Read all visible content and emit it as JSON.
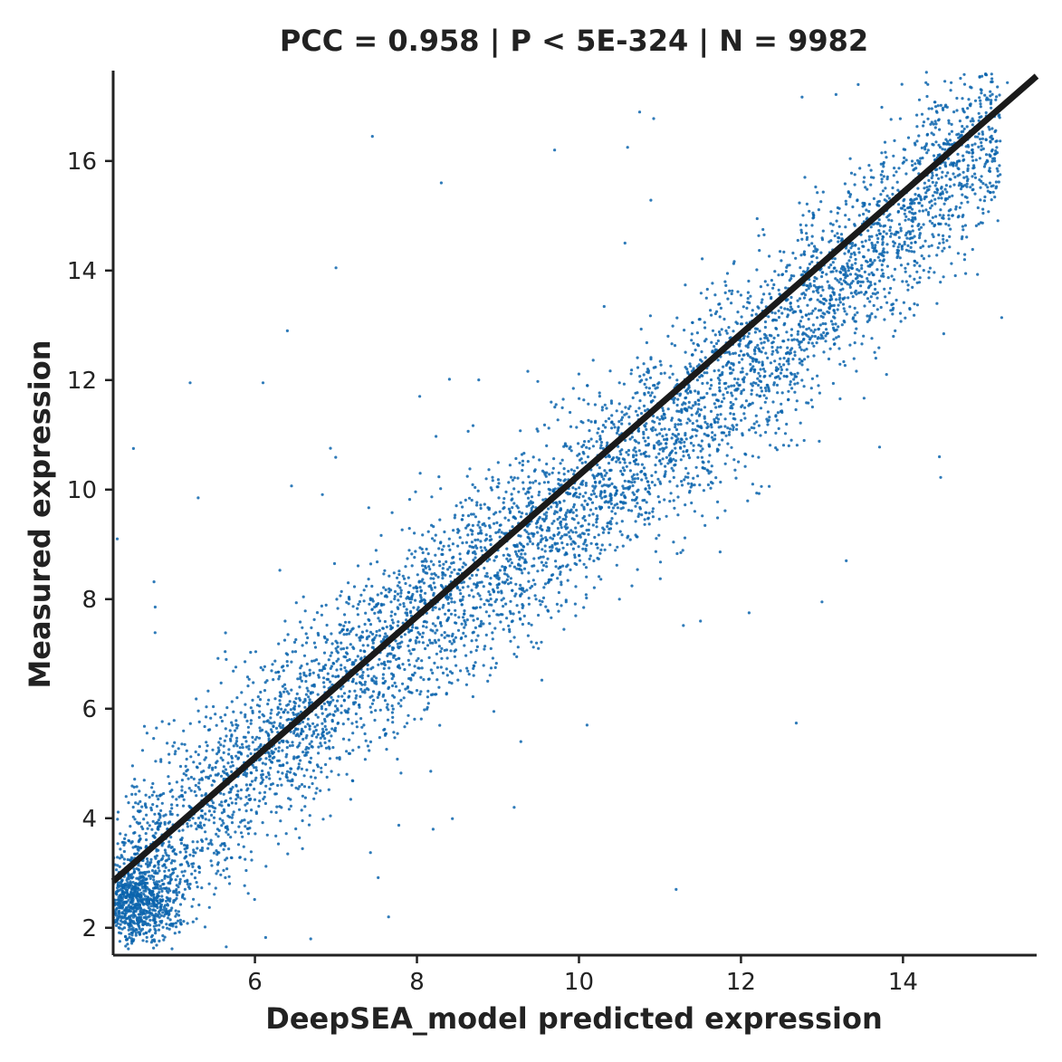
{
  "chart_data": {
    "type": "scatter",
    "title": "PCC =  0.958 | P <  5E-324 | N = 9982",
    "xlabel": "DeepSEA_model predicted expression",
    "ylabel": "Measured expression",
    "xlim": [
      4.25,
      15.65
    ],
    "ylim": [
      1.5,
      17.65
    ],
    "xticks": [
      6,
      8,
      10,
      12,
      14
    ],
    "yticks": [
      2,
      4,
      6,
      8,
      10,
      12,
      14,
      16
    ],
    "grid": false,
    "legend": "none",
    "point_color": "#0a64ad",
    "line_color": "#1a1a1a",
    "regression_line": {
      "x": [
        4.25,
        15.65
      ],
      "y": [
        2.85,
        17.55
      ]
    },
    "points": [
      [
        4.4,
        2.31
      ],
      [
        4.55,
        2.62
      ],
      [
        4.7,
        2.44
      ],
      [
        4.5,
        2.09
      ],
      [
        4.65,
        2.88
      ],
      [
        4.8,
        2.21
      ],
      [
        4.35,
        2.55
      ],
      [
        4.9,
        3.1
      ],
      [
        5.1,
        3.02
      ],
      [
        5.3,
        3.85
      ],
      [
        5.5,
        4.12
      ],
      [
        5.2,
        3.33
      ],
      [
        5.7,
        4.48
      ],
      [
        5.9,
        4.9
      ],
      [
        5.4,
        3.62
      ],
      [
        6.1,
        4.7
      ],
      [
        6.0,
        5.25
      ],
      [
        6.3,
        5.05
      ],
      [
        6.5,
        6.1
      ],
      [
        6.2,
        5.62
      ],
      [
        6.7,
        5.4
      ],
      [
        6.8,
        6.7
      ],
      [
        6.9,
        6.25
      ],
      [
        7.1,
        6.95
      ],
      [
        7.2,
        7.45
      ],
      [
        7.4,
        6.6
      ],
      [
        7.5,
        7.9
      ],
      [
        7.6,
        7.25
      ],
      [
        7.8,
        8.05
      ],
      [
        7.9,
        7.4
      ],
      [
        8.1,
        8.6
      ],
      [
        8.2,
        7.85
      ],
      [
        8.4,
        9.1
      ],
      [
        8.5,
        8.2
      ],
      [
        8.7,
        9.55
      ],
      [
        8.8,
        8.75
      ],
      [
        9.0,
        10.05
      ],
      [
        9.1,
        9.1
      ],
      [
        9.3,
        10.35
      ],
      [
        9.4,
        9.55
      ],
      [
        9.6,
        10.8
      ],
      [
        9.7,
        9.95
      ],
      [
        9.9,
        11.15
      ],
      [
        10.0,
        10.3
      ],
      [
        10.2,
        11.55
      ],
      [
        10.3,
        10.75
      ],
      [
        10.5,
        11.95
      ],
      [
        10.6,
        11.0
      ],
      [
        10.8,
        12.3
      ],
      [
        10.9,
        11.45
      ],
      [
        11.1,
        12.8
      ],
      [
        11.2,
        11.9
      ],
      [
        11.4,
        13.05
      ],
      [
        11.5,
        12.2
      ],
      [
        11.7,
        13.25
      ],
      [
        11.8,
        12.5
      ],
      [
        12.0,
        13.55
      ],
      [
        12.1,
        12.85
      ],
      [
        12.3,
        13.8
      ],
      [
        12.4,
        13.1
      ],
      [
        12.6,
        14.1
      ],
      [
        12.7,
        13.45
      ],
      [
        12.9,
        14.35
      ],
      [
        13.0,
        13.7
      ],
      [
        13.2,
        14.6
      ],
      [
        13.3,
        13.9
      ],
      [
        13.5,
        14.85
      ],
      [
        13.6,
        14.2
      ],
      [
        13.8,
        15.1
      ],
      [
        13.9,
        14.5
      ],
      [
        14.1,
        15.3
      ],
      [
        14.2,
        14.75
      ],
      [
        14.4,
        15.55
      ],
      [
        14.5,
        14.95
      ],
      [
        14.7,
        15.75
      ],
      [
        14.8,
        15.25
      ],
      [
        14.95,
        16.05
      ],
      [
        15.05,
        15.45
      ],
      [
        14.6,
        16.3
      ],
      [
        15.2,
        15.75
      ],
      [
        7.45,
        16.45
      ],
      [
        9.7,
        16.2
      ],
      [
        8.3,
        15.6
      ],
      [
        7.0,
        14.05
      ],
      [
        10.6,
        16.25
      ],
      [
        5.2,
        11.95
      ],
      [
        6.1,
        11.95
      ],
      [
        4.5,
        10.75
      ],
      [
        5.3,
        9.85
      ],
      [
        4.3,
        9.1
      ],
      [
        6.4,
        12.9
      ],
      [
        8.2,
        3.8
      ],
      [
        9.2,
        4.2
      ],
      [
        10.1,
        5.7
      ],
      [
        11.2,
        2.7
      ],
      [
        13.0,
        12.8
      ],
      [
        14.45,
        10.6
      ],
      [
        13.3,
        8.7
      ],
      [
        13.0,
        7.95
      ],
      [
        12.1,
        7.75
      ],
      [
        11.5,
        7.6
      ],
      [
        10.5,
        8.0
      ],
      [
        9.5,
        7.1
      ],
      [
        8.95,
        5.95
      ]
    ],
    "point_cloud_seed": 9982
  }
}
